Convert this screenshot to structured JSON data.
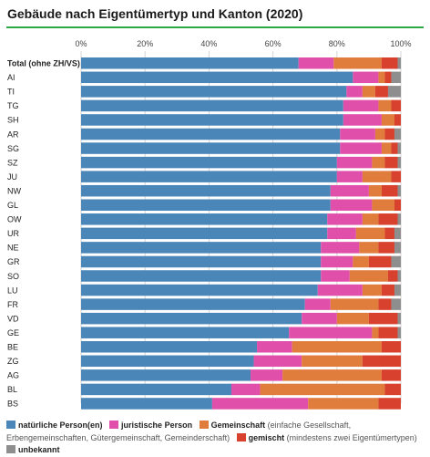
{
  "title": "Gebäude nach Eigentümertyp und Kanton (2020)",
  "chart_data": {
    "type": "bar",
    "orientation": "horizontal",
    "stacked": true,
    "percent": true,
    "xlim": [
      0,
      100
    ],
    "x_ticks": [
      "0%",
      "20%",
      "40%",
      "60%",
      "80%",
      "100%"
    ],
    "grid": true,
    "legend_position": "bottom",
    "categories": [
      "Total (ohne ZH/VS)",
      "AI",
      "TI",
      "TG",
      "SH",
      "AR",
      "SG",
      "SZ",
      "JU",
      "NW",
      "GL",
      "OW",
      "UR",
      "NE",
      "GR",
      "SO",
      "LU",
      "FR",
      "VD",
      "GE",
      "BE",
      "ZG",
      "AG",
      "BL",
      "BS"
    ],
    "series": [
      {
        "name": "natürliche Person(en)",
        "color": "#4a86b8",
        "values": [
          68,
          85,
          83,
          82,
          82,
          81,
          81,
          80,
          80,
          78,
          78,
          77,
          77,
          75,
          75,
          75,
          74,
          70,
          69,
          65,
          55,
          54,
          53,
          47,
          41
        ]
      },
      {
        "name": "juristische Person",
        "color": "#e04faa",
        "values": [
          11,
          8,
          5,
          11,
          12,
          11,
          13,
          11,
          8,
          12,
          13,
          11,
          9,
          12,
          10,
          9,
          14,
          8,
          11,
          26,
          11,
          15,
          10,
          9,
          30
        ]
      },
      {
        "name": "Gemeinschaft",
        "color": "#e07c3c",
        "values": [
          15,
          2,
          4,
          4,
          4,
          3,
          3,
          4,
          9,
          4,
          7,
          5,
          9,
          6,
          5,
          12,
          6,
          15,
          10,
          2,
          28,
          19,
          31,
          39,
          22
        ]
      },
      {
        "name": "gemischt",
        "color": "#d9412f",
        "values": [
          5,
          2,
          4,
          3,
          2,
          3,
          2,
          4,
          3,
          5,
          2,
          6,
          3,
          5,
          7,
          3,
          4,
          4,
          9,
          6,
          6,
          12,
          6,
          5,
          7
        ]
      },
      {
        "name": "unbekannt",
        "color": "#8e8e8e",
        "values": [
          1,
          3,
          4,
          0,
          0,
          2,
          1,
          1,
          0,
          1,
          0,
          1,
          2,
          2,
          3,
          1,
          2,
          3,
          1,
          1,
          0,
          0,
          0,
          0,
          0
        ]
      }
    ]
  },
  "legend": {
    "items": [
      {
        "label": "natürliche Person(en)",
        "note": "",
        "color": "#4a86b8"
      },
      {
        "label": "juristische Person",
        "note": "",
        "color": "#e04faa"
      },
      {
        "label": "Gemeinschaft",
        "note": " (einfache Gesellschaft, Erbengemeinschaften, Gütergemeinschaft, Gemeinderschaft)",
        "color": "#e07c3c"
      },
      {
        "label": "gemischt",
        "note": " (mindestens zwei Eigentümertypen)",
        "color": "#d9412f"
      },
      {
        "label": "unbekannt",
        "note": "",
        "color": "#8e8e8e"
      }
    ]
  }
}
